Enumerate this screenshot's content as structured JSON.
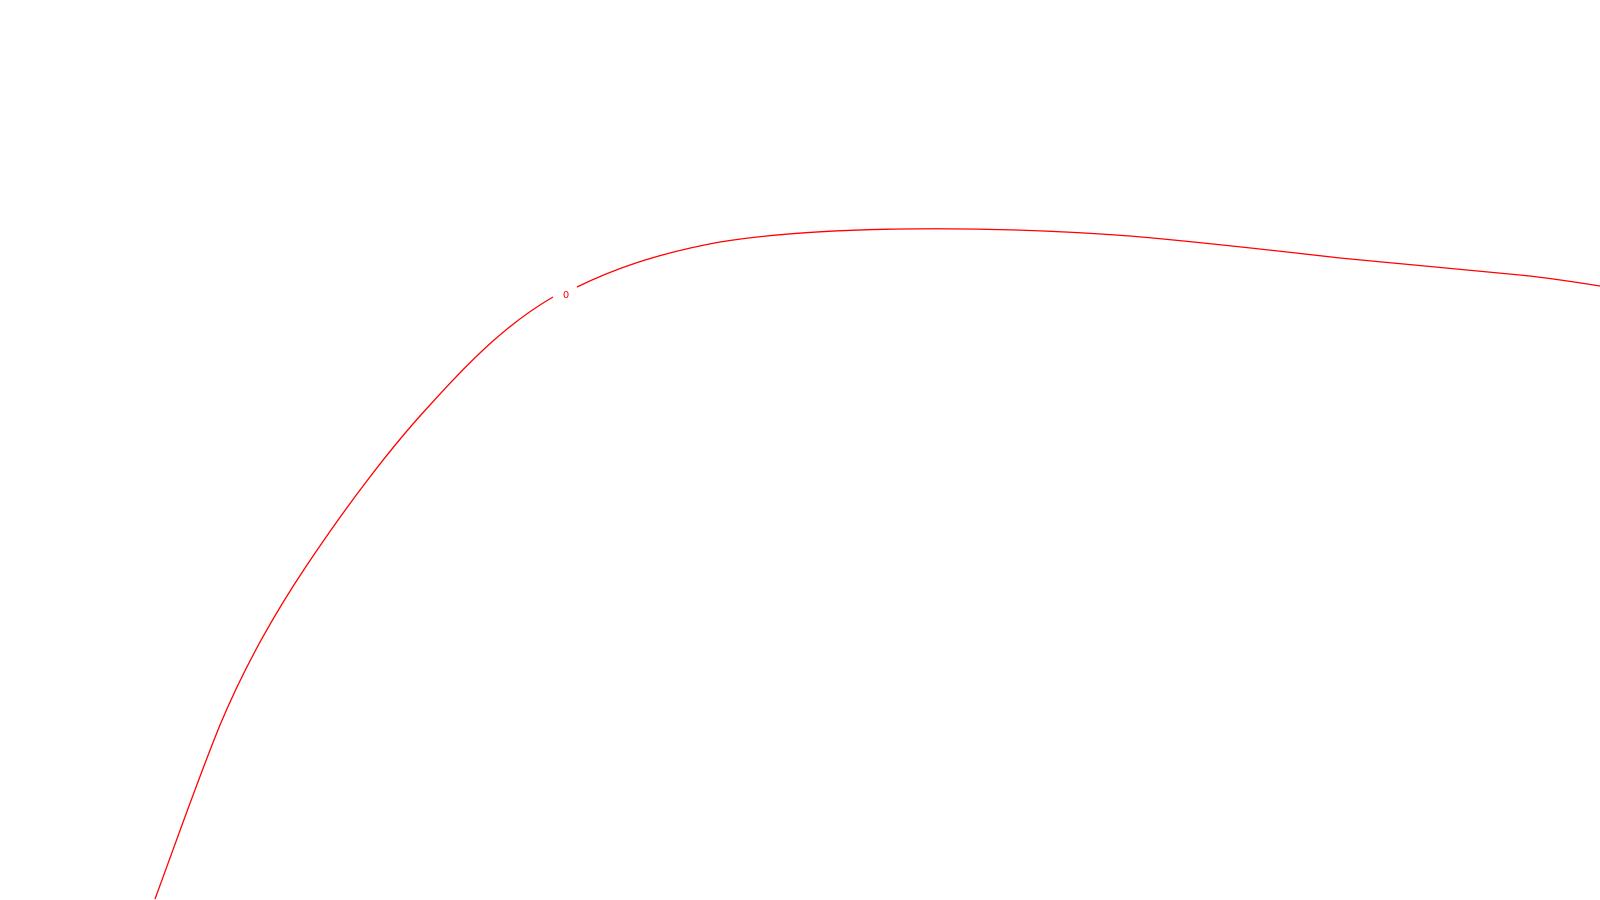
{
  "diagram": {
    "contours": [
      {
        "label": "0",
        "color": "#ff0000"
      }
    ]
  }
}
